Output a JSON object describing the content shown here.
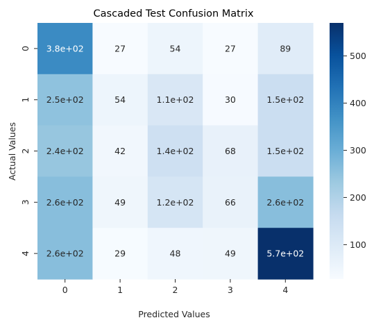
{
  "chart_data": {
    "type": "heatmap",
    "title": "Cascaded Test Confusion Matrix",
    "xlabel": "Predicted Values",
    "ylabel": "Actual Values",
    "x_categories": [
      "0",
      "1",
      "2",
      "3",
      "4"
    ],
    "y_categories": [
      "0",
      "1",
      "2",
      "3",
      "4"
    ],
    "values": [
      [
        380,
        27,
        54,
        27,
        89
      ],
      [
        250,
        54,
        110,
        30,
        150
      ],
      [
        240,
        42,
        140,
        68,
        150
      ],
      [
        260,
        49,
        120,
        66,
        260
      ],
      [
        260,
        29,
        48,
        49,
        570
      ]
    ],
    "annotations": [
      [
        "3.8e+02",
        "27",
        "54",
        "27",
        "89"
      ],
      [
        "2.5e+02",
        "54",
        "1.1e+02",
        "30",
        "1.5e+02"
      ],
      [
        "2.4e+02",
        "42",
        "1.4e+02",
        "68",
        "1.5e+02"
      ],
      [
        "2.6e+02",
        "49",
        "1.2e+02",
        "66",
        "2.6e+02"
      ],
      [
        "2.6e+02",
        "29",
        "48",
        "49",
        "5.7e+02"
      ]
    ],
    "colormap": "Blues",
    "colorbar": {
      "range": [
        27,
        570
      ],
      "ticks": [
        100,
        200,
        300,
        400,
        500
      ],
      "tick_labels": [
        "100",
        "200",
        "300",
        "400",
        "500"
      ]
    },
    "colors": {
      "text_light": "#ffffff",
      "text_dark": "#262626",
      "axis": "#262626"
    }
  }
}
